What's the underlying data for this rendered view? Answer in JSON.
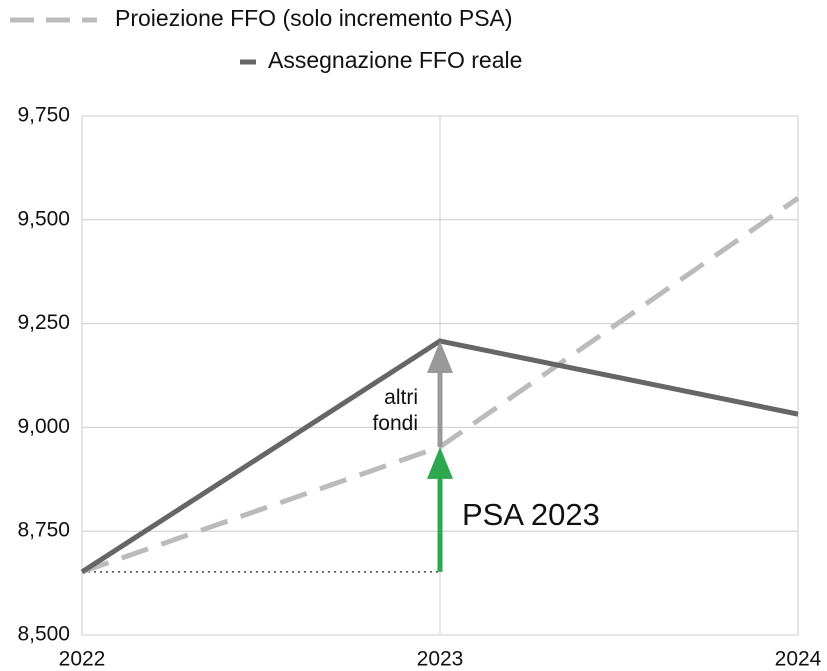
{
  "chart_data": {
    "type": "line",
    "x": [
      2022,
      2023,
      2024
    ],
    "series": [
      {
        "name": "Assegnazione FFO reale",
        "color": "#666666",
        "dashed": false,
        "values": [
          8652,
          9208,
          9032
        ]
      },
      {
        "name": "Proiezione FFO (solo incremento PSA)",
        "color": "#bbbbbb",
        "dashed": true,
        "values": [
          8652,
          8953,
          9552
        ]
      }
    ],
    "xlim": [
      2022,
      2024
    ],
    "xticks": [
      2022,
      2023,
      2024
    ],
    "ylim": [
      8500,
      9750
    ],
    "yticks": [
      {
        "value": 8500,
        "label": "8,500"
      },
      {
        "value": 8750,
        "label": "8,750"
      },
      {
        "value": 9000,
        "label": "9,000"
      },
      {
        "value": 9250,
        "label": "9,250"
      },
      {
        "value": 9500,
        "label": "9,500"
      },
      {
        "value": 9750,
        "label": "9,750"
      }
    ],
    "grid": true,
    "annotations": [
      {
        "text": "altri fondi",
        "color": "#999999"
      },
      {
        "text": "PSA 2023",
        "color": "#2ea84f"
      }
    ]
  }
}
